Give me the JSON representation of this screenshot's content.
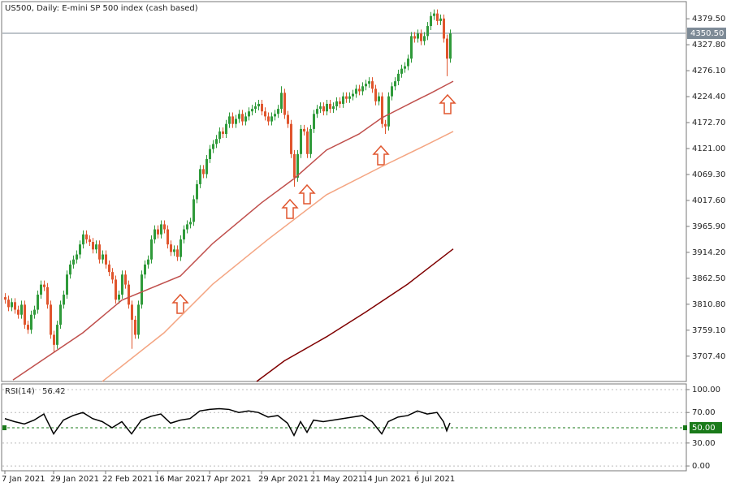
{
  "chart_data": [
    {
      "type": "candlestick",
      "title": "US500, Daily:  E-mini SP 500 index (cash based)",
      "categories": [
        "7 Jan 2021",
        null,
        null,
        null,
        null,
        null,
        null,
        null,
        null,
        null,
        null,
        null,
        null,
        null,
        null,
        "29 Jan 2021",
        null,
        null,
        null,
        null,
        null,
        null,
        null,
        null,
        null,
        null,
        null,
        null,
        null,
        null,
        null,
        "22 Feb 2021",
        null,
        null,
        null,
        null,
        null,
        null,
        null,
        null,
        null,
        null,
        null,
        null,
        null,
        null,
        null,
        "16 Mar 2021",
        null,
        null,
        null,
        null,
        null,
        null,
        null,
        null,
        null,
        null,
        null,
        null,
        null,
        null,
        null,
        "7 Apr 2021",
        null,
        null,
        null,
        null,
        null,
        null,
        null,
        null,
        null,
        null,
        null,
        null,
        null,
        null,
        null,
        "29 Apr 2021",
        null,
        null,
        null,
        null,
        null,
        null,
        null,
        null,
        null,
        null,
        null,
        null,
        null,
        null,
        null,
        "21 May 2021",
        null,
        null,
        null,
        null,
        null,
        null,
        null,
        null,
        null,
        null,
        null,
        null,
        null,
        null,
        null,
        "14 Jun 2021",
        null,
        null,
        null,
        null,
        null,
        null,
        null,
        null,
        null,
        null,
        null,
        null,
        null,
        null,
        null,
        "6 Jul 2021",
        null,
        null,
        null,
        null,
        null,
        null,
        null,
        null,
        null,
        null
      ],
      "open": [
        3825,
        3820,
        3805,
        3815,
        3800,
        3790,
        3810,
        3770,
        3760,
        3790,
        3800,
        3830,
        3850,
        3845,
        3810,
        3750,
        3730,
        3770,
        3810,
        3830,
        3870,
        3890,
        3900,
        3910,
        3930,
        3950,
        3940,
        3935,
        3920,
        3930,
        3900,
        3910,
        3890,
        3875,
        3860,
        3820,
        3830,
        3870,
        3850,
        3810,
        3780,
        3750,
        3810,
        3870,
        3890,
        3900,
        3940,
        3960,
        3950,
        3970,
        3960,
        3930,
        3915,
        3920,
        3905,
        3940,
        3960,
        3970,
        3975,
        4020,
        4050,
        4080,
        4070,
        4100,
        4120,
        4130,
        4140,
        4155,
        4150,
        4170,
        4185,
        4170,
        4180,
        4190,
        4175,
        4185,
        4195,
        4200,
        4205,
        4210,
        4195,
        4185,
        4175,
        4185,
        4190,
        4200,
        4232,
        4188,
        4170,
        4110,
        4063,
        4110,
        4160,
        4155,
        4110,
        4160,
        4190,
        4200,
        4205,
        4195,
        4210,
        4200,
        4205,
        4215,
        4210,
        4225,
        4220,
        4225,
        4230,
        4240,
        4235,
        4245,
        4250,
        4255,
        4240,
        4215,
        4225,
        4170,
        4165,
        4225,
        4245,
        4255,
        4270,
        4280,
        4285,
        4300,
        4345,
        4340,
        4350,
        4335,
        4345,
        4365,
        4385,
        4390,
        4375,
        4380,
        4340,
        4300
      ],
      "high": [
        3833,
        3828,
        3823,
        3823,
        3808,
        3818,
        3818,
        3778,
        3798,
        3808,
        3838,
        3858,
        3858,
        3853,
        3818,
        3758,
        3778,
        3818,
        3838,
        3878,
        3898,
        3908,
        3918,
        3938,
        3958,
        3958,
        3948,
        3943,
        3938,
        3938,
        3918,
        3918,
        3898,
        3883,
        3868,
        3838,
        3878,
        3878,
        3858,
        3818,
        3788,
        3818,
        3878,
        3898,
        3908,
        3948,
        3968,
        3968,
        3978,
        3978,
        3968,
        3938,
        3928,
        3928,
        3948,
        3968,
        3978,
        3983,
        4028,
        4058,
        4088,
        4088,
        4108,
        4128,
        4138,
        4148,
        4163,
        4163,
        4178,
        4193,
        4193,
        4188,
        4198,
        4198,
        4193,
        4203,
        4208,
        4213,
        4218,
        4218,
        4203,
        4193,
        4193,
        4198,
        4208,
        4245,
        4240,
        4196,
        4178,
        4118,
        4118,
        4168,
        4168,
        4163,
        4168,
        4198,
        4208,
        4213,
        4213,
        4218,
        4218,
        4213,
        4223,
        4223,
        4233,
        4233,
        4233,
        4238,
        4248,
        4248,
        4253,
        4258,
        4263,
        4263,
        4248,
        4233,
        4233,
        4178,
        4233,
        4253,
        4263,
        4278,
        4288,
        4293,
        4308,
        4353,
        4353,
        4358,
        4358,
        4353,
        4373,
        4393,
        4398,
        4398,
        4388,
        4388,
        4348,
        4358
      ],
      "low": [
        3812,
        3797,
        3797,
        3792,
        3782,
        3782,
        3762,
        3752,
        3752,
        3782,
        3792,
        3822,
        3837,
        3802,
        3742,
        3714,
        3722,
        3762,
        3802,
        3822,
        3862,
        3882,
        3892,
        3902,
        3922,
        3932,
        3927,
        3912,
        3912,
        3892,
        3892,
        3882,
        3867,
        3852,
        3812,
        3812,
        3822,
        3842,
        3802,
        3722,
        3742,
        3742,
        3802,
        3862,
        3882,
        3892,
        3932,
        3942,
        3942,
        3952,
        3922,
        3907,
        3907,
        3897,
        3897,
        3932,
        3952,
        3962,
        3967,
        4012,
        4042,
        4062,
        4062,
        4092,
        4112,
        4122,
        4132,
        4142,
        4142,
        4162,
        4162,
        4162,
        4172,
        4167,
        4167,
        4177,
        4187,
        4192,
        4197,
        4187,
        4177,
        4167,
        4167,
        4177,
        4182,
        4192,
        4180,
        4162,
        4102,
        4045,
        4055,
        4102,
        4147,
        4102,
        4102,
        4152,
        4182,
        4192,
        4187,
        4187,
        4192,
        4192,
        4197,
        4202,
        4202,
        4212,
        4212,
        4217,
        4222,
        4227,
        4227,
        4237,
        4242,
        4232,
        4207,
        4207,
        4162,
        4150,
        4157,
        4217,
        4237,
        4247,
        4262,
        4272,
        4277,
        4292,
        4332,
        4332,
        4327,
        4327,
        4337,
        4357,
        4377,
        4367,
        4367,
        4332,
        4265,
        4292
      ],
      "close": [
        3820,
        3805,
        3815,
        3800,
        3790,
        3810,
        3770,
        3760,
        3790,
        3800,
        3830,
        3850,
        3845,
        3810,
        3750,
        3730,
        3770,
        3810,
        3830,
        3870,
        3890,
        3900,
        3910,
        3930,
        3950,
        3940,
        3935,
        3920,
        3930,
        3900,
        3910,
        3890,
        3875,
        3860,
        3820,
        3830,
        3870,
        3850,
        3810,
        3780,
        3750,
        3810,
        3870,
        3890,
        3900,
        3940,
        3960,
        3950,
        3970,
        3960,
        3930,
        3915,
        3920,
        3905,
        3940,
        3960,
        3970,
        3975,
        4020,
        4050,
        4080,
        4070,
        4100,
        4120,
        4130,
        4140,
        4155,
        4150,
        4170,
        4185,
        4170,
        4180,
        4190,
        4175,
        4185,
        4195,
        4200,
        4205,
        4210,
        4195,
        4185,
        4175,
        4185,
        4190,
        4200,
        4232,
        4188,
        4170,
        4110,
        4063,
        4110,
        4160,
        4155,
        4110,
        4160,
        4190,
        4200,
        4205,
        4195,
        4210,
        4200,
        4205,
        4215,
        4210,
        4225,
        4220,
        4225,
        4230,
        4240,
        4235,
        4245,
        4250,
        4255,
        4240,
        4215,
        4225,
        4170,
        4165,
        4225,
        4245,
        4255,
        4270,
        4280,
        4285,
        4300,
        4345,
        4340,
        4350,
        4335,
        4345,
        4365,
        4385,
        4390,
        4375,
        4380,
        4340,
        4300,
        4350
      ],
      "up_color": "#2f9a3a",
      "down_color": "#e0552d",
      "series": [
        {
          "color": "#c0504d",
          "x": [
            2.5,
            24,
            36,
            54,
            64,
            79,
            89,
            99,
            109,
            116,
            126,
            131,
            138
          ],
          "values": [
            3660,
            3754,
            3819,
            3867,
            3932,
            4013,
            4061,
            4118,
            4150,
            4182,
            4215,
            4231,
            4255
          ]
        },
        {
          "color": "#f4a582",
          "x": [
            30,
            49,
            64,
            81,
            99,
            116,
            129,
            138
          ],
          "values": [
            3657,
            3754,
            3851,
            3940,
            4029,
            4085,
            4126,
            4155
          ]
        },
        {
          "color": "#7f0000",
          "x": [
            77.5,
            86,
            99,
            111,
            124,
            138
          ],
          "values": [
            3657,
            3698,
            3746,
            3795,
            3851,
            3921
          ]
        }
      ],
      "last_price": {
        "value": 4350.5,
        "label": "4350.50"
      },
      "ylim": [
        3657,
        4412
      ],
      "yticks": [
        {
          "value": 4379.5,
          "label": "4379.50"
        },
        {
          "value": 4327.8,
          "label": "4327.80"
        },
        {
          "value": 4276.1,
          "label": "4276.10"
        },
        {
          "value": 4224.4,
          "label": "4224.40"
        },
        {
          "value": 4172.7,
          "label": "4172.70"
        },
        {
          "value": 4121,
          "label": "4121.00"
        },
        {
          "value": 4069.3,
          "label": "4069.30"
        },
        {
          "value": 4017.6,
          "label": "4017.60"
        },
        {
          "value": 3965.9,
          "label": "3965.90"
        },
        {
          "value": 3914.2,
          "label": "3914.20"
        },
        {
          "value": 3862.5,
          "label": "3862.50"
        },
        {
          "value": 3810.8,
          "label": "3810.80"
        },
        {
          "value": 3759.1,
          "label": "3759.10"
        },
        {
          "value": 3707.4,
          "label": "3707.40"
        }
      ]
    },
    {
      "type": "line",
      "title": "RSI(14)",
      "series": [
        {
          "color": "#000000",
          "x": [
            0,
            3,
            6,
            9,
            12,
            15,
            18,
            21,
            24,
            27,
            30,
            33,
            36,
            39,
            42,
            45,
            48,
            51,
            54,
            57,
            60,
            63,
            66,
            69,
            72,
            75,
            78,
            81,
            84,
            87,
            89,
            91,
            93,
            95,
            98,
            101,
            104,
            107,
            110,
            113,
            116,
            118,
            121,
            124,
            127,
            130,
            133,
            135,
            136,
            137
          ],
          "values": [
            62,
            58,
            55,
            60,
            68,
            42,
            60,
            66,
            70,
            62,
            58,
            50,
            58,
            42,
            60,
            65,
            68,
            56,
            60,
            62,
            72,
            74,
            75,
            74,
            70,
            72,
            70,
            64,
            66,
            56,
            40,
            58,
            44,
            60,
            58,
            60,
            62,
            64,
            66,
            58,
            42,
            58,
            64,
            66,
            72,
            68,
            70,
            58,
            46,
            56.42
          ]
        }
      ],
      "level": {
        "value": 50,
        "label": "50.00",
        "color": "#1a7a1a"
      },
      "ylim": [
        -6.3,
        107.4
      ],
      "yticks": [
        {
          "value": 100,
          "label": "100.00"
        },
        {
          "value": 70,
          "label": "70.00"
        },
        {
          "value": 30,
          "label": "30.00"
        },
        {
          "value": 0,
          "label": "0.00"
        }
      ],
      "grid": true
    }
  ]
}
